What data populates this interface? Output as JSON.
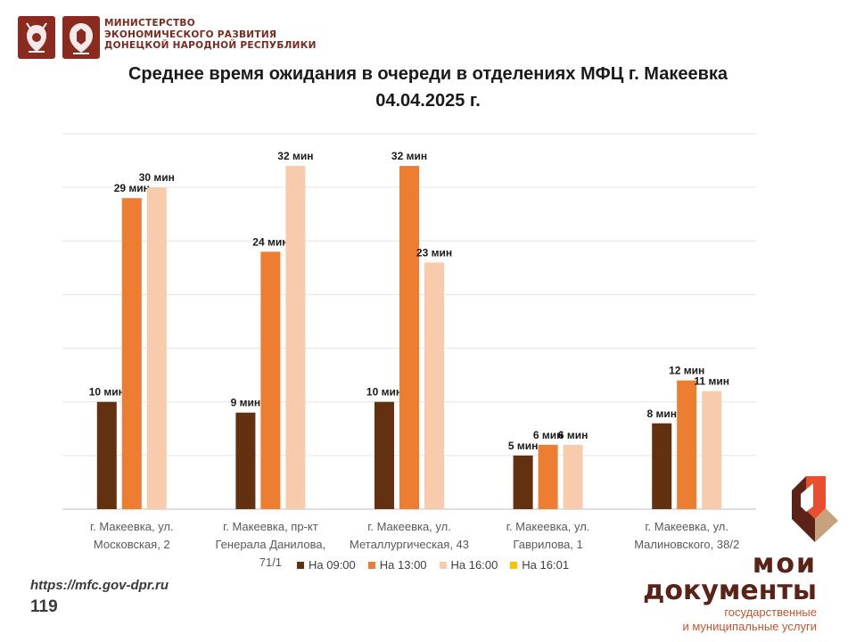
{
  "header": {
    "ministry_lines": [
      "МИНИСТЕРСТВО",
      "ЭКОНОМИЧЕСКОГО РАЗВИТИЯ",
      "ДОНЕЦКОЙ НАРОДНОЙ РЕСПУБЛИКИ"
    ],
    "emblem_color": "#8b2a1e"
  },
  "chart_data": {
    "type": "bar",
    "title": "Среднее время ожидания в очереди в отделениях МФЦ г. Макеевка",
    "subtitle": "04.04.2025 г.",
    "categories": [
      [
        "г. Макеевка, ул.",
        "Московская, 2"
      ],
      [
        "г. Макеевка, пр-кт",
        "Генерала Данилова,",
        "71/1"
      ],
      [
        "г. Макеевка, ул.",
        "Металлургическая, 43"
      ],
      [
        "г. Макеевка, ул.",
        "Гаврилова, 1"
      ],
      [
        "г. Макеевка, ул.",
        "Малиновского, 38/2"
      ]
    ],
    "series": [
      {
        "name": "На 09:00",
        "color": "#633110",
        "values": [
          10,
          9,
          10,
          5,
          8
        ]
      },
      {
        "name": "На 13:00",
        "color": "#ed7d31",
        "values": [
          29,
          24,
          32,
          6,
          12
        ]
      },
      {
        "name": "На 16:00",
        "color": "#f8cbad",
        "values": [
          30,
          32,
          23,
          6,
          11
        ]
      },
      {
        "name": "На 16:01",
        "color": "#ffc000",
        "values": [
          null,
          null,
          null,
          null,
          null
        ]
      }
    ],
    "value_suffix": " мин",
    "ylim": [
      0,
      35
    ],
    "grid": true,
    "legend": "bottom"
  },
  "footer": {
    "site": "https://mfc.gov-dpr.ru",
    "page": "119"
  },
  "brand": {
    "line1": "мои",
    "line2": "документы",
    "sub1": "государственные",
    "sub2": "и муниципальные услуги",
    "colors": {
      "red": "#e94e2e",
      "dark": "#5b2318",
      "tan": "#c8a27c"
    }
  }
}
